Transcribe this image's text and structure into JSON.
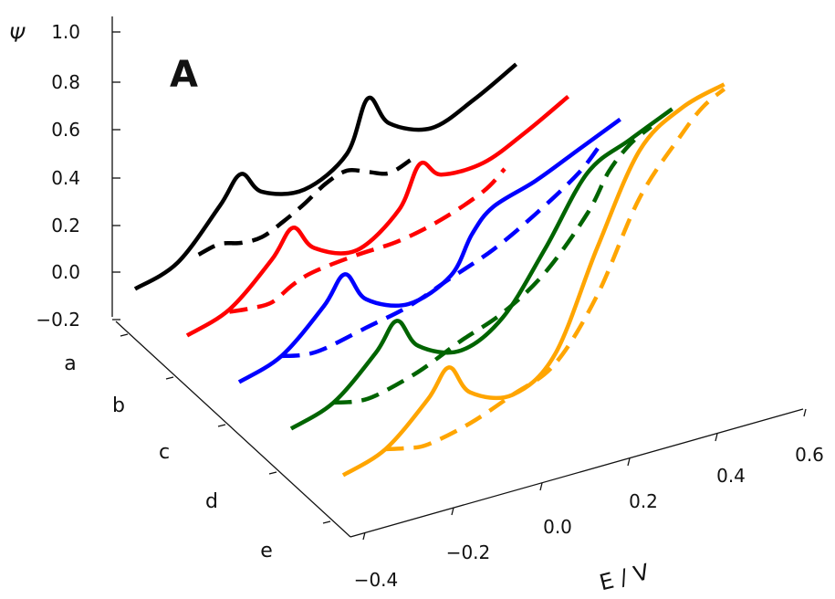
{
  "chart_data": {
    "type": "line",
    "panel_label": "A",
    "y_axis": {
      "label": "Ψ",
      "ticks": [
        "1.0",
        "0.8",
        "0.6",
        "0.4",
        "0.2",
        "0.0",
        "−0.2"
      ],
      "ylim": [
        -0.2,
        1.0
      ]
    },
    "x_axis": {
      "label": "E / V",
      "ticks": [
        "−0.4",
        "−0.2",
        "0.0",
        "0.2",
        "0.4",
        "0.6"
      ],
      "xlim": [
        -0.4,
        0.6
      ]
    },
    "depth_axis": {
      "ticks": [
        "a",
        "b",
        "c",
        "d",
        "e"
      ]
    },
    "series": [
      {
        "depth": "a",
        "color": "#000000",
        "style": "solid",
        "x": [
          -0.4,
          -0.3,
          -0.2,
          -0.15,
          -0.1,
          0.0,
          0.1,
          0.15,
          0.2,
          0.3,
          0.4,
          0.5
        ],
        "y": [
          -0.04,
          0.0,
          0.17,
          0.27,
          0.16,
          0.1,
          0.18,
          0.38,
          0.24,
          0.15,
          0.2,
          0.28
        ]
      },
      {
        "depth": "a",
        "color": "#000000",
        "style": "dashed",
        "x": [
          -0.25,
          -0.2,
          -0.15,
          -0.1,
          -0.05,
          0.0,
          0.05,
          0.1,
          0.15,
          0.2,
          0.25
        ],
        "y": [
          0.0,
          0.01,
          -0.02,
          -0.03,
          0.0,
          0.04,
          0.09,
          0.11,
          0.07,
          0.03,
          0.05
        ]
      },
      {
        "depth": "b",
        "color": "#ff0000",
        "style": "solid",
        "x": [
          -0.4,
          -0.3,
          -0.2,
          -0.15,
          -0.1,
          0.0,
          0.1,
          0.15,
          0.2,
          0.3,
          0.4,
          0.5
        ],
        "y": [
          -0.04,
          0.0,
          0.14,
          0.24,
          0.12,
          0.04,
          0.14,
          0.3,
          0.22,
          0.2,
          0.26,
          0.34
        ]
      },
      {
        "depth": "b",
        "color": "#ff0000",
        "style": "dashed",
        "x": [
          -0.3,
          -0.25,
          -0.2,
          -0.15,
          -0.1,
          0.0,
          0.1,
          0.2,
          0.3,
          0.35
        ],
        "y": [
          -0.01,
          -0.03,
          -0.04,
          0.0,
          0.02,
          0.02,
          0.01,
          0.03,
          0.08,
          0.14
        ]
      },
      {
        "depth": "c",
        "color": "#0000ff",
        "style": "solid",
        "x": [
          -0.4,
          -0.3,
          -0.2,
          -0.15,
          -0.1,
          0.0,
          0.1,
          0.15,
          0.2,
          0.3,
          0.4,
          0.5
        ],
        "y": [
          -0.04,
          0.0,
          0.14,
          0.24,
          0.1,
          0.01,
          0.06,
          0.2,
          0.28,
          0.32,
          0.38,
          0.44
        ]
      },
      {
        "depth": "c",
        "color": "#0000ff",
        "style": "dashed",
        "x": [
          -0.3,
          -0.25,
          -0.2,
          -0.1,
          0.0,
          0.1,
          0.2,
          0.3,
          0.4,
          0.45
        ],
        "y": [
          0.0,
          -0.03,
          -0.04,
          -0.02,
          0.0,
          0.05,
          0.1,
          0.18,
          0.28,
          0.36
        ]
      },
      {
        "depth": "d",
        "color": "#006400",
        "style": "solid",
        "x": [
          -0.4,
          -0.3,
          -0.2,
          -0.15,
          -0.1,
          0.0,
          0.1,
          0.2,
          0.3,
          0.4,
          0.5
        ],
        "y": [
          -0.04,
          0.0,
          0.14,
          0.24,
          0.1,
          0.01,
          0.08,
          0.3,
          0.55,
          0.62,
          0.68
        ]
      },
      {
        "depth": "d",
        "color": "#006400",
        "style": "dashed",
        "x": [
          -0.3,
          -0.25,
          -0.2,
          -0.1,
          0.0,
          0.1,
          0.2,
          0.3,
          0.35,
          0.4,
          0.45
        ],
        "y": [
          0.0,
          -0.03,
          -0.04,
          -0.01,
          0.05,
          0.1,
          0.2,
          0.38,
          0.52,
          0.6,
          0.64
        ]
      },
      {
        "depth": "e",
        "color": "#ffa500",
        "style": "solid",
        "x": [
          -0.4,
          -0.3,
          -0.2,
          -0.15,
          -0.1,
          0.0,
          0.1,
          0.2,
          0.3,
          0.4,
          0.5
        ],
        "y": [
          -0.04,
          0.0,
          0.14,
          0.24,
          0.1,
          0.02,
          0.12,
          0.5,
          0.84,
          0.95,
          0.98
        ]
      },
      {
        "depth": "e",
        "color": "#ffa500",
        "style": "dashed",
        "x": [
          -0.3,
          -0.25,
          -0.2,
          -0.1,
          0.0,
          0.1,
          0.2,
          0.3,
          0.4,
          0.45,
          0.5
        ],
        "y": [
          0.0,
          -0.03,
          -0.05,
          -0.03,
          0.02,
          0.08,
          0.3,
          0.64,
          0.84,
          0.92,
          0.96
        ]
      }
    ]
  }
}
